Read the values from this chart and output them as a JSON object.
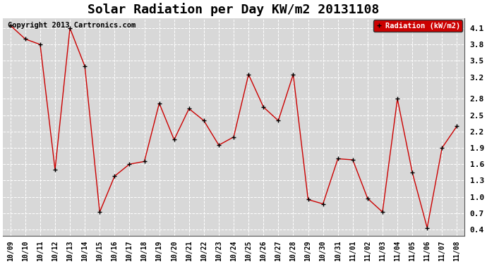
{
  "title": "Solar Radiation per Day KW/m2 20131108",
  "copyright": "Copyright 2013 Cartronics.com",
  "legend_label": "Radiation (kW/m2)",
  "dates": [
    "10/09",
    "10/10",
    "10/11",
    "10/12",
    "10/13",
    "10/14",
    "10/15",
    "10/16",
    "10/17",
    "10/18",
    "10/19",
    "10/20",
    "10/21",
    "10/22",
    "10/23",
    "10/24",
    "10/25",
    "10/26",
    "10/27",
    "10/28",
    "10/29",
    "10/30",
    "10/31",
    "11/01",
    "11/02",
    "11/03",
    "11/04",
    "11/05",
    "11/06",
    "11/07",
    "11/08"
  ],
  "values": [
    4.15,
    3.9,
    3.8,
    1.5,
    4.1,
    3.4,
    0.72,
    1.38,
    1.6,
    1.65,
    2.72,
    2.05,
    2.62,
    2.4,
    1.95,
    2.1,
    3.25,
    2.65,
    2.4,
    3.25,
    0.95,
    0.87,
    1.7,
    1.68,
    0.97,
    0.72,
    2.8,
    1.45,
    0.43,
    1.9,
    2.3
  ],
  "line_color": "#cc0000",
  "marker_color": "#000000",
  "bg_color": "#ffffff",
  "plot_bg_color": "#d8d8d8",
  "grid_color": "#ffffff",
  "ylim": [
    0.28,
    4.28
  ],
  "yticks": [
    0.4,
    0.7,
    1.0,
    1.3,
    1.6,
    1.9,
    2.2,
    2.5,
    2.8,
    3.2,
    3.5,
    3.8,
    4.1
  ],
  "legend_bg": "#cc0000",
  "legend_text_color": "#ffffff",
  "title_fontsize": 13,
  "copyright_fontsize": 7.5,
  "tick_fontsize": 7,
  "figwidth": 6.9,
  "figheight": 3.75,
  "dpi": 100
}
